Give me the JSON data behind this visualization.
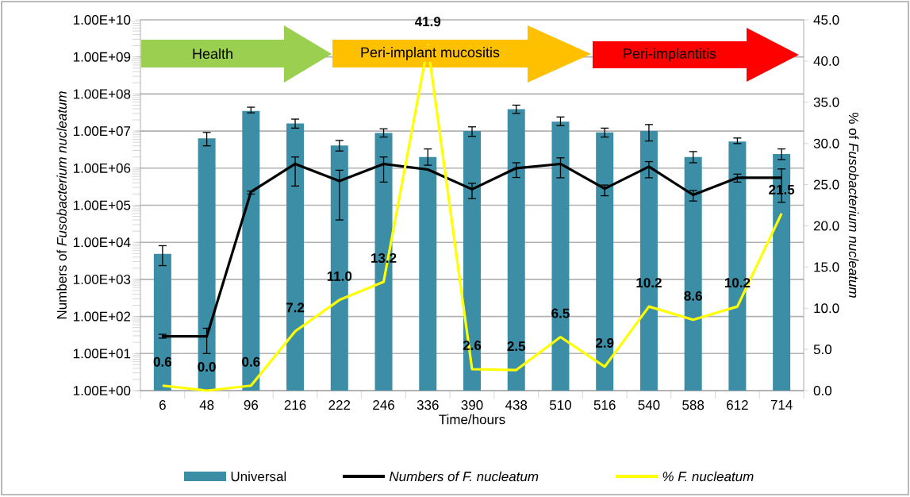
{
  "chart_data": {
    "type": "bar",
    "xlabel": "Time/hours",
    "ylabel": "Numbers of *Fusobacterium nucleatum*",
    "y2label": "% of *Fusobacterium nucleatum*",
    "categories": [
      "6",
      "48",
      "96",
      "216",
      "222",
      "246",
      "336",
      "390",
      "438",
      "510",
      "516",
      "540",
      "588",
      "612",
      "714"
    ],
    "series": [
      {
        "name": "Universal",
        "color": "#3b8ea5",
        "values": [
          4900,
          6400000.0,
          35000000.0,
          16000000.0,
          4100000.0,
          8900000.0,
          2000000.0,
          10000000.0,
          39000000.0,
          18000000.0,
          9200000.0,
          10000000.0,
          2000000.0,
          5200000.0,
          2400000.0
        ],
        "errors": [
          [
            2350,
            8100
          ],
          [
            4000000.0,
            9200000.0
          ],
          [
            31000000.0,
            44000000.0
          ],
          [
            12000000.0,
            21000000.0
          ],
          [
            2900000.0,
            5600000.0
          ],
          [
            6900000.0,
            11500000.0
          ],
          [
            1200000.0,
            3300000.0
          ],
          [
            7200000.0,
            13000000.0
          ],
          [
            30000000.0,
            50000000.0
          ],
          [
            14000000.0,
            24000000.0
          ],
          [
            6900000.0,
            12000000.0
          ],
          [
            5400000.0,
            15000000.0
          ],
          [
            1400000.0,
            2800000.0
          ],
          [
            4600000.0,
            6500000.0
          ],
          [
            1700000.0,
            3300000.0
          ]
        ]
      },
      {
        "name": "Numbers of F. nucleatum",
        "type": "line",
        "color": "#000000",
        "values": [
          29,
          29,
          230000.0,
          1300000.0,
          450000.0,
          1300000.0,
          920000.0,
          270000.0,
          1000000.0,
          1300000.0,
          280000.0,
          1100000.0,
          190000.0,
          550000.0,
          550000.0
        ],
        "errors": [
          [
            26,
            33
          ],
          [
            10,
            48
          ],
          [
            200000.0,
            240000.0
          ],
          [
            330000.0,
            2000000.0
          ],
          [
            40000.0,
            880000.0
          ],
          [
            420000.0,
            2000000.0
          ],
          null,
          [
            150000.0,
            390000.0
          ],
          [
            560000.0,
            1400000.0
          ],
          [
            550000.0,
            1900000.0
          ],
          [
            180000.0,
            350000.0
          ],
          [
            550000.0,
            1500000.0
          ],
          [
            130000.0,
            250000.0
          ],
          [
            420000.0,
            690000.0
          ],
          [
            120000.0,
            950000.0
          ]
        ]
      },
      {
        "name": "% F. nucleatum",
        "type": "line",
        "axis": "y2",
        "color": "#ffff00",
        "values": [
          0.6,
          0.0,
          0.6,
          7.2,
          11.0,
          13.2,
          41.9,
          2.6,
          2.5,
          6.5,
          2.9,
          10.2,
          8.6,
          10.2,
          21.5
        ],
        "value_labels": [
          "0.6",
          "0.0",
          "0.6",
          "7.2",
          "11.0",
          "13.2",
          "41.9",
          "2.6",
          "2.5",
          "6.5",
          "2.9",
          "10.2",
          "8.6",
          "10.2",
          "21.5"
        ]
      }
    ],
    "log": "y",
    "ylim": [
      1,
      10000000000
    ],
    "yticks": [
      {
        "value": 1,
        "label": "1.00E+00"
      },
      {
        "value": 10,
        "label": "1.00E+01"
      },
      {
        "value": 100,
        "label": "1.00E+02"
      },
      {
        "value": 1000,
        "label": "1.00E+03"
      },
      {
        "value": 10000,
        "label": "1.00E+04"
      },
      {
        "value": 100000,
        "label": "1.00E+05"
      },
      {
        "value": 1000000,
        "label": "1.00E+06"
      },
      {
        "value": 10000000,
        "label": "1.00E+07"
      },
      {
        "value": 100000000,
        "label": "1.00E+08"
      },
      {
        "value": 1000000000,
        "label": "1.00E+09"
      },
      {
        "value": 10000000000,
        "label": "1.00E+10"
      }
    ],
    "y2lim": [
      0,
      45
    ],
    "y2ticks": [
      {
        "value": 0,
        "label": "0.0"
      },
      {
        "value": 5,
        "label": "5.0"
      },
      {
        "value": 10,
        "label": "10.0"
      },
      {
        "value": 15,
        "label": "15.0"
      },
      {
        "value": 20,
        "label": "20.0"
      },
      {
        "value": 25,
        "label": "25.0"
      },
      {
        "value": 30,
        "label": "30.0"
      },
      {
        "value": 35,
        "label": "35.0"
      },
      {
        "value": 40,
        "label": "40.0"
      },
      {
        "value": 45,
        "label": "45.0"
      }
    ],
    "grid": "y",
    "legend": "bottom",
    "annotations": [
      "Health",
      "Peri-implant mucositis",
      "Peri-implantitis"
    ]
  }
}
